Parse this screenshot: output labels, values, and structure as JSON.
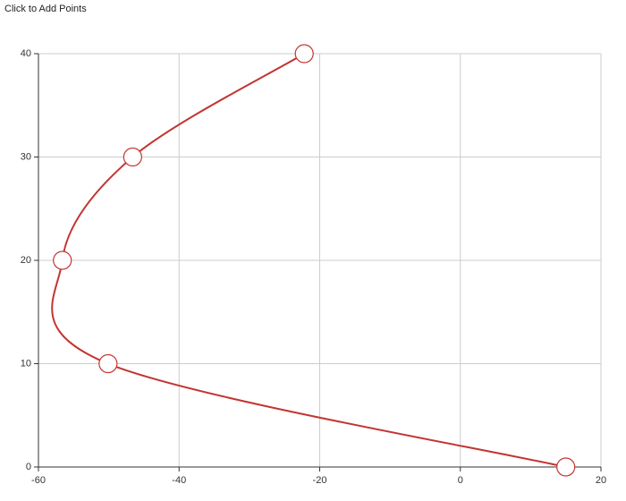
{
  "chart_data": {
    "type": "line",
    "title": "Click to Add Points",
    "x": [
      15,
      -50.1,
      -56.6,
      -46.6,
      -22.2
    ],
    "series": [
      {
        "color": "#c23531",
        "values": [
          0,
          10,
          20,
          30,
          40
        ]
      }
    ],
    "xlim": [
      -60,
      20
    ],
    "xticks": [
      -60,
      -40,
      -20,
      0,
      20
    ],
    "ylim": [
      0,
      40
    ],
    "yticks": [
      0,
      10,
      20,
      30,
      40
    ],
    "grid": true,
    "smooth": true
  }
}
